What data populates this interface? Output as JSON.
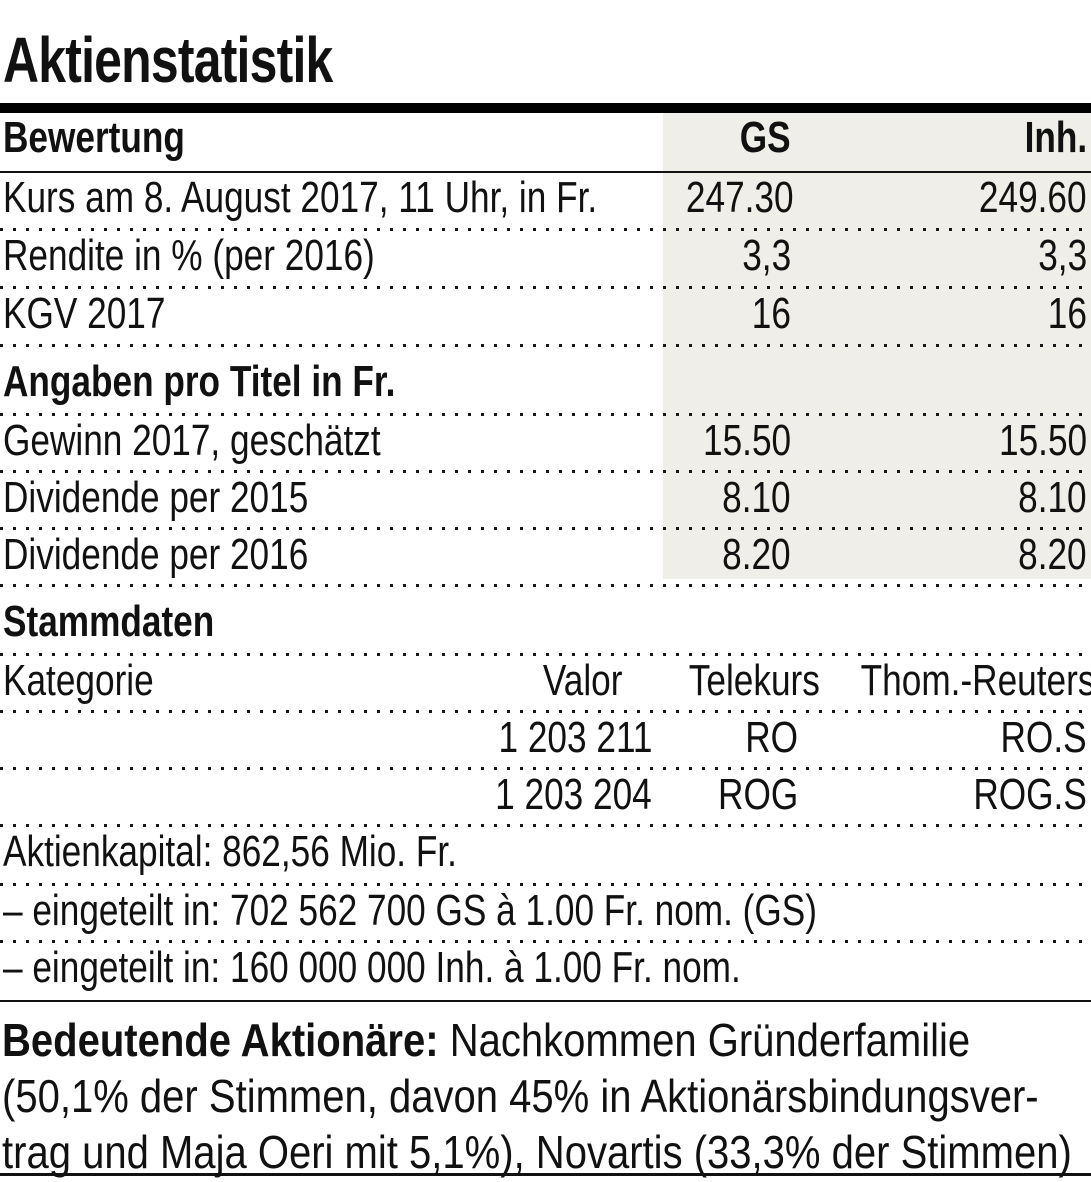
{
  "title": "Aktienstatistik",
  "colors": {
    "shade": "#efeee8",
    "text": "#111111",
    "rule": "#000000"
  },
  "bewertung": {
    "header": {
      "label": "Bewertung",
      "col1": "GS",
      "col2": "Inh."
    },
    "rows": [
      {
        "label": "Kurs am 8. August 2017, 11 Uhr, in Fr.",
        "gs": "247.30",
        "inh": "249.60"
      },
      {
        "label": "Rendite in % (per 2016)",
        "gs": "3,3",
        "inh": "3,3"
      },
      {
        "label": "KGV 2017",
        "gs": "16",
        "inh": "16"
      }
    ]
  },
  "angaben": {
    "header": "Angaben pro Titel in Fr.",
    "rows": [
      {
        "label": "Gewinn 2017, geschätzt",
        "gs": "15.50",
        "inh": "15.50"
      },
      {
        "label": "Dividende per 2015",
        "gs": "8.10",
        "inh": "8.10"
      },
      {
        "label": "Dividende per 2016",
        "gs": "8.20",
        "inh": "8.20"
      }
    ]
  },
  "stammdaten": {
    "header": "Stammdaten",
    "columns": {
      "label": "Kategorie",
      "valor": "Valor",
      "telekurs": "Telekurs",
      "reuters": "Thom.-Reuters"
    },
    "rows": [
      {
        "valor": "1 203 211",
        "telekurs": "RO",
        "reuters": "RO.S"
      },
      {
        "valor": "1 203 204",
        "telekurs": "ROG",
        "reuters": "ROG.S"
      }
    ]
  },
  "kapital": {
    "line1": "Aktienkapital: 862,56 Mio. Fr.",
    "line2": "– eingeteilt in: 702 562 700 GS à 1.00 Fr. nom. (GS)",
    "line3": "– eingeteilt in: 160 000 000 Inh. à 1.00 Fr. nom."
  },
  "aktionaere": {
    "bold": "Bedeutende Aktionäre:",
    "line1_rest": " Nachkommen Gründerfamilie",
    "line2": "(50,1% der Stimmen, davon 45% in Aktionärsbindungsver-",
    "line3": "trag und Maja Oeri mit 5,1%), Novartis (33,3% der Stimmen)"
  }
}
